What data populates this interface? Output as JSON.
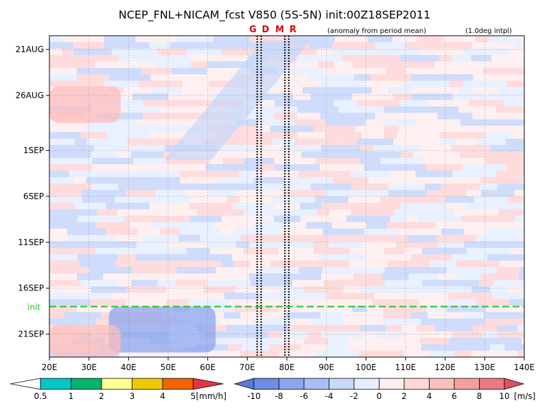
{
  "chart_data": {
    "type": "heatmap",
    "title": "NCEP_FNL+NICAM_fcst V850 (5S-5N) init:00Z18SEP2011",
    "subtitle_left": "(anomaly from period mean)",
    "subtitle_right": "(1.0deg intpl)",
    "x_ticks": [
      "20E",
      "30E",
      "40E",
      "50E",
      "60E",
      "70E",
      "80E",
      "90E",
      "100E",
      "110E",
      "120E",
      "130E",
      "140E"
    ],
    "x_values": [
      20,
      30,
      40,
      50,
      60,
      70,
      80,
      90,
      100,
      110,
      120,
      130,
      140
    ],
    "xlim": [
      20,
      140
    ],
    "y_ticks": [
      "21AUG",
      "26AUG",
      "1SEP",
      "6SEP",
      "11SEP",
      "16SEP",
      "21SEP"
    ],
    "y_values": [
      0,
      5,
      11,
      16,
      21,
      26,
      31
    ],
    "ylim_days_from_21AUG": [
      -1.5,
      33.5
    ],
    "grid": true,
    "vertical_markers": [
      {
        "label": "G",
        "lon": 72.5,
        "style": "dotted",
        "label_color": "#e00000"
      },
      {
        "label": "D",
        "lon": 73.5,
        "style": "dotted",
        "label_color": "#e00000"
      },
      {
        "label": "M",
        "lon": 79.5,
        "style": "dotted",
        "label_color": "#e00000"
      },
      {
        "label": "R",
        "lon": 80.5,
        "style": "dotted",
        "label_color": "#e00000"
      }
    ],
    "init_line": {
      "label": "init",
      "day": 28,
      "color": "#22c322"
    },
    "regions": [
      {
        "name": "eastward-propagating negative anomaly band",
        "value": -4,
        "lon0": 55,
        "day0": 12,
        "lon1": 82,
        "day1": -1
      },
      {
        "name": "forecast negative anomaly blob west",
        "value": -8,
        "lon_range": [
          35,
          62
        ],
        "day_range": [
          28,
          33
        ]
      },
      {
        "name": "forecast negative anomaly central",
        "value": -6,
        "lon_range": [
          50,
          58
        ],
        "day_range": [
          30,
          32.5
        ]
      },
      {
        "name": "positive anomaly forecast west",
        "value": 4,
        "lon_range": [
          20,
          38
        ],
        "day_range": [
          30,
          33.5
        ]
      },
      {
        "name": "positive anomaly late august",
        "value": 4,
        "lon_range": [
          20,
          38
        ],
        "day_range": [
          4,
          8
        ]
      }
    ],
    "legend_precip": {
      "unit": "[mm/h]",
      "labels": [
        "0.5",
        "1",
        "2",
        "3",
        "4",
        "5"
      ],
      "colors": [
        "#00c8c8",
        "#00b46e",
        "#ffff96",
        "#f0c800",
        "#f06400",
        "#e63246"
      ]
    },
    "legend_wind": {
      "unit": "[m/s]",
      "labels": [
        "-10",
        "-8",
        "-6",
        "-4",
        "-2",
        "0",
        "2",
        "4",
        "6",
        "8",
        "10"
      ],
      "colors": [
        "#5a78dc",
        "#6e8ce6",
        "#8ca5ee",
        "#aabef5",
        "#c8d7fa",
        "#e6eeff",
        "#ffeeee",
        "#ffd7d7",
        "#fcbebe",
        "#f5a0a0",
        "#eb7882",
        "#e05060"
      ]
    }
  }
}
